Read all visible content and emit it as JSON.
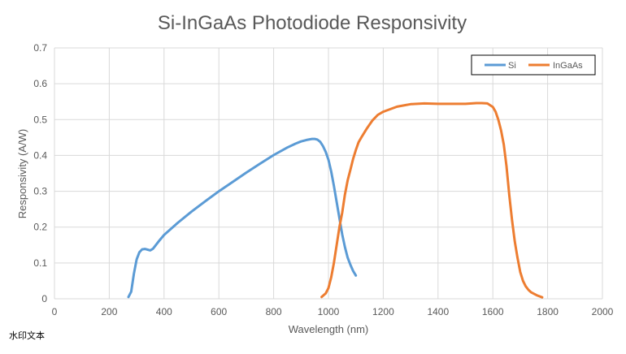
{
  "chart_data": {
    "type": "line",
    "title": "Si-InGaAs Photodiode Responsivity",
    "xlabel": "Wavelength (nm)",
    "ylabel": "Responsivity (A/W)",
    "xlim": [
      0,
      2000
    ],
    "ylim": [
      0,
      0.7
    ],
    "xticks": [
      "0",
      "200",
      "400",
      "600",
      "800",
      "1000",
      "1200",
      "1400",
      "1600",
      "1800",
      "2000"
    ],
    "yticks": [
      "0",
      "0.1",
      "0.2",
      "0.3",
      "0.4",
      "0.5",
      "0.6",
      "0.7"
    ],
    "grid": true,
    "legend_position": "top-right",
    "series": [
      {
        "name": "Si",
        "color": "#5b9bd5",
        "x": [
          270,
          280,
          290,
          300,
          310,
          320,
          330,
          340,
          350,
          360,
          370,
          380,
          400,
          450,
          500,
          550,
          600,
          650,
          700,
          750,
          800,
          850,
          880,
          900,
          920,
          940,
          950,
          960,
          970,
          980,
          990,
          1000,
          1010,
          1020,
          1030,
          1040,
          1050,
          1060,
          1070,
          1080,
          1090,
          1100
        ],
        "y": [
          0.005,
          0.02,
          0.07,
          0.11,
          0.13,
          0.138,
          0.139,
          0.137,
          0.135,
          0.14,
          0.15,
          0.16,
          0.178,
          0.212,
          0.243,
          0.272,
          0.3,
          0.326,
          0.352,
          0.377,
          0.401,
          0.422,
          0.433,
          0.439,
          0.443,
          0.446,
          0.446,
          0.444,
          0.438,
          0.426,
          0.41,
          0.388,
          0.355,
          0.315,
          0.27,
          0.225,
          0.18,
          0.145,
          0.115,
          0.095,
          0.078,
          0.065
        ]
      },
      {
        "name": "InGaAs",
        "color": "#ed7d31",
        "x": [
          975,
          990,
          1000,
          1010,
          1020,
          1030,
          1040,
          1050,
          1060,
          1070,
          1080,
          1090,
          1100,
          1110,
          1120,
          1140,
          1160,
          1180,
          1200,
          1250,
          1300,
          1350,
          1400,
          1450,
          1500,
          1540,
          1560,
          1580,
          1600,
          1610,
          1620,
          1630,
          1640,
          1650,
          1660,
          1670,
          1680,
          1690,
          1700,
          1710,
          1720,
          1730,
          1740,
          1760,
          1780
        ],
        "y": [
          0.005,
          0.015,
          0.03,
          0.06,
          0.1,
          0.15,
          0.2,
          0.24,
          0.29,
          0.33,
          0.36,
          0.39,
          0.415,
          0.437,
          0.45,
          0.475,
          0.497,
          0.513,
          0.522,
          0.536,
          0.543,
          0.545,
          0.544,
          0.544,
          0.544,
          0.546,
          0.546,
          0.545,
          0.535,
          0.522,
          0.5,
          0.47,
          0.43,
          0.37,
          0.29,
          0.22,
          0.16,
          0.115,
          0.075,
          0.05,
          0.035,
          0.025,
          0.018,
          0.01,
          0.004
        ]
      }
    ]
  },
  "watermark": "水印文本"
}
